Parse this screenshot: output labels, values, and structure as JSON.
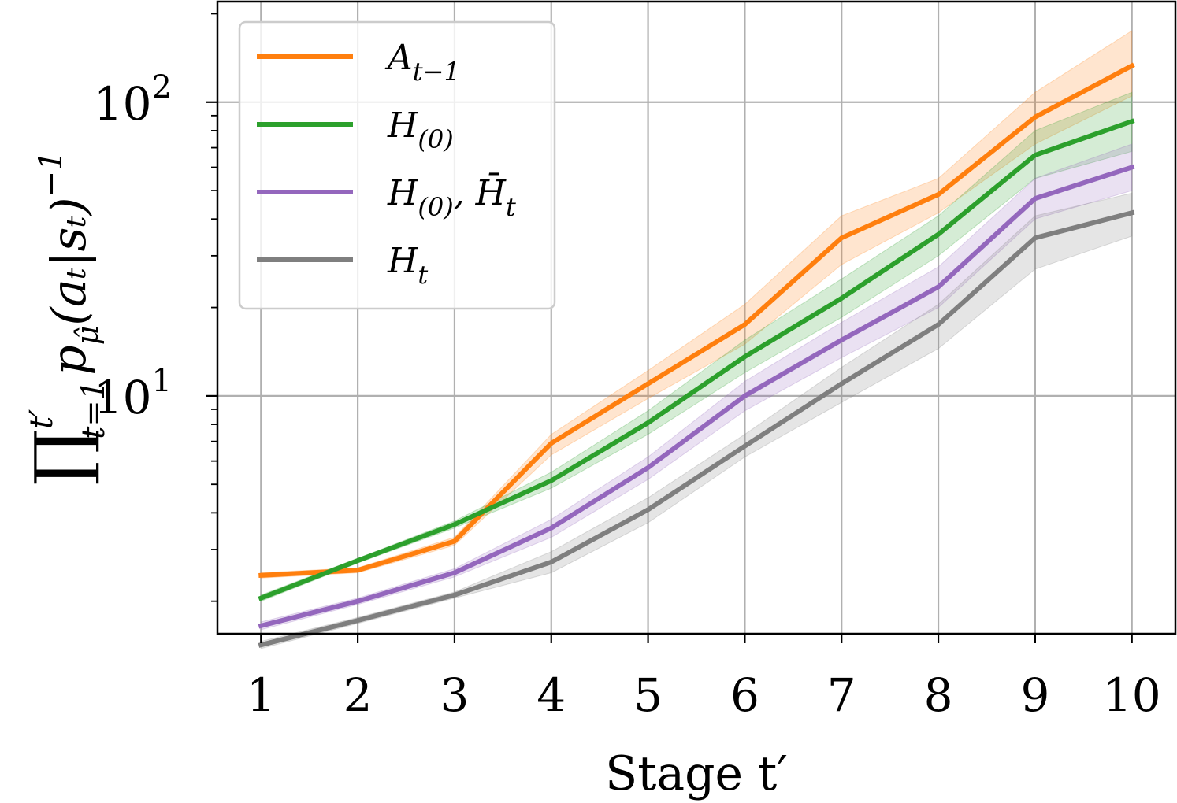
{
  "chart_data": {
    "type": "line",
    "xlabel": "Stage t′",
    "ylabel": "∏ₜ₌₁ᵗ′ p_μ̂(aₜ|sₜ)⁻¹",
    "ylabel_parts": {
      "prod": "∏",
      "sup": "t′",
      "sub": "t=1",
      "body": "p",
      "body_sub": "μ̂",
      "body_rest": "(aₜ|sₜ)",
      "body_exp": "−1"
    },
    "yscale": "log",
    "xlim": [
      0.55,
      10.45
    ],
    "ylim": [
      1.55,
      220
    ],
    "x": [
      1,
      2,
      3,
      4,
      5,
      6,
      7,
      8,
      9,
      10
    ],
    "x_tick_labels": [
      "1",
      "2",
      "3",
      "4",
      "5",
      "6",
      "7",
      "8",
      "9",
      "10"
    ],
    "y_ticks": [
      {
        "value": 10,
        "base": "10",
        "exp": "1"
      },
      {
        "value": 100,
        "base": "10",
        "exp": "2"
      }
    ],
    "grid": true,
    "legend_position": "top-left",
    "series": [
      {
        "name": "A_{t−1}",
        "legend": {
          "main": "A",
          "sub": "t−1"
        },
        "color": "#ff7f0e",
        "values": [
          2.45,
          2.55,
          3.2,
          6.9,
          11.0,
          17.5,
          34.5,
          48.5,
          89.0,
          133.0
        ],
        "lower": [
          2.4,
          2.5,
          3.1,
          6.3,
          9.8,
          15.0,
          28.0,
          42.0,
          72.0,
          105.0
        ],
        "upper": [
          2.5,
          2.6,
          3.3,
          7.4,
          12.2,
          20.5,
          41.0,
          55.0,
          108.0,
          175.0
        ]
      },
      {
        "name": "H_{(0)}",
        "legend": {
          "main": "H",
          "sub": "(0)"
        },
        "color": "#2ca02c",
        "values": [
          2.05,
          2.75,
          3.65,
          5.15,
          8.1,
          13.6,
          21.5,
          35.5,
          66.0,
          86.0
        ],
        "lower": [
          2.0,
          2.7,
          3.55,
          4.85,
          7.4,
          12.0,
          18.5,
          30.0,
          55.0,
          68.0
        ],
        "upper": [
          2.1,
          2.8,
          3.75,
          5.5,
          8.9,
          15.5,
          25.0,
          41.0,
          80.0,
          108.0
        ]
      },
      {
        "name": "H_{(0)}, H̄_t",
        "legend": {
          "main": "H",
          "sub": "(0)",
          "extra": ", H̄",
          "extra_sub": "t"
        },
        "color": "#9467bd",
        "values": [
          1.65,
          2.0,
          2.5,
          3.55,
          5.7,
          10.0,
          15.5,
          23.5,
          47.0,
          60.0
        ],
        "lower": [
          1.6,
          1.95,
          2.42,
          3.3,
          5.2,
          8.9,
          13.5,
          20.0,
          40.0,
          50.0
        ],
        "upper": [
          1.7,
          2.05,
          2.58,
          3.8,
          6.2,
          11.2,
          17.8,
          27.5,
          55.0,
          72.0
        ]
      },
      {
        "name": "H_t",
        "legend": {
          "main": "H",
          "sub": "t"
        },
        "color": "#7f7f7f",
        "values": [
          1.42,
          1.72,
          2.1,
          2.72,
          4.1,
          6.75,
          11.0,
          17.5,
          34.5,
          42.0
        ],
        "lower": [
          1.38,
          1.68,
          2.05,
          2.5,
          3.7,
          6.2,
          9.5,
          14.5,
          27.0,
          35.0
        ],
        "upper": [
          1.46,
          1.76,
          2.15,
          2.95,
          4.5,
          7.4,
          12.5,
          20.5,
          41.0,
          49.0
        ]
      }
    ]
  }
}
